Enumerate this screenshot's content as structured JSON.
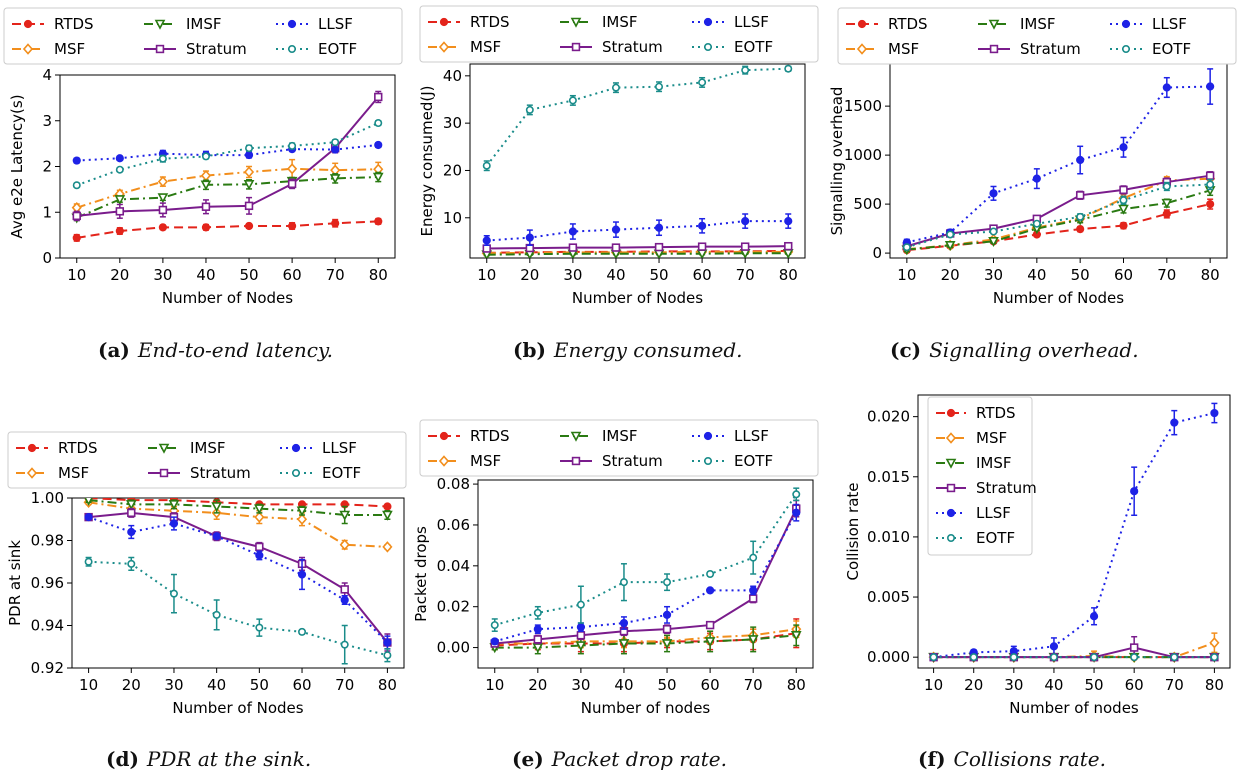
{
  "x_nodes": [
    10,
    20,
    30,
    40,
    50,
    60,
    70,
    80
  ],
  "series_styles": {
    "RTDS": {
      "color": "#e3241b",
      "dash": "9,5",
      "marker": "circle"
    },
    "MSF": {
      "color": "#f28e1c",
      "dash": "9,4,2,4",
      "marker": "diamond"
    },
    "IMSF": {
      "color": "#2a7a12",
      "dash": "9,4,2,4",
      "marker": "triangle"
    },
    "Stratum": {
      "color": "#7a1c8c",
      "dash": "",
      "marker": "square"
    },
    "LLSF": {
      "color": "#1e22e6",
      "dash": "2,4",
      "marker": "circle"
    },
    "EOTF": {
      "color": "#1a8c8a",
      "dash": "2,4",
      "marker": "circle-open"
    }
  },
  "captions": [
    {
      "label": "(a)",
      "text": "End-to-end latency."
    },
    {
      "label": "(b)",
      "text": "Energy consumed."
    },
    {
      "label": "(c)",
      "text": "Signalling overhead."
    },
    {
      "label": "(d)",
      "text": "PDR at the sink."
    },
    {
      "label": "(e)",
      "text": "Packet drop rate."
    },
    {
      "label": "(f)",
      "text": "Collisions rate."
    }
  ],
  "chart_data": [
    {
      "type": "line",
      "title": "",
      "xlabel": "Number of Nodes",
      "ylabel": "Avg e2e Latency(s)",
      "ylim": [
        0,
        4
      ],
      "yticks": [
        "0",
        "1",
        "2",
        "3",
        "4"
      ],
      "ytick_values": [
        0,
        1,
        2,
        3,
        4
      ],
      "xticks": [
        "10",
        "20",
        "30",
        "40",
        "50",
        "60",
        "70",
        "80"
      ],
      "grid": false,
      "legend": "top-outside-3col",
      "legend_order": [
        "RTDS",
        "MSF",
        "IMSF",
        "Stratum",
        "LLSF",
        "EOTF"
      ],
      "series": [
        {
          "name": "RTDS",
          "values": [
            0.44,
            0.59,
            0.67,
            0.67,
            0.7,
            0.7,
            0.76,
            0.8
          ],
          "err": [
            0.07,
            0.07,
            0.05,
            0.06,
            0.05,
            0.07,
            0.08,
            0.06
          ]
        },
        {
          "name": "MSF",
          "values": [
            1.1,
            1.4,
            1.67,
            1.8,
            1.88,
            1.95,
            1.92,
            1.94
          ],
          "err": [
            0.08,
            0.08,
            0.1,
            0.1,
            0.12,
            0.2,
            0.15,
            0.15
          ]
        },
        {
          "name": "IMSF",
          "values": [
            0.88,
            1.28,
            1.32,
            1.6,
            1.61,
            1.68,
            1.74,
            1.77
          ],
          "err": [
            0.06,
            0.06,
            0.06,
            0.1,
            0.1,
            0.08,
            0.1,
            0.1
          ]
        },
        {
          "name": "Stratum",
          "values": [
            0.92,
            1.02,
            1.05,
            1.12,
            1.14,
            1.62,
            2.4,
            3.52
          ],
          "err": [
            0.1,
            0.15,
            0.15,
            0.15,
            0.18,
            0.1,
            0.1,
            0.12
          ]
        },
        {
          "name": "LLSF",
          "values": [
            2.13,
            2.18,
            2.28,
            2.25,
            2.25,
            2.38,
            2.37,
            2.47
          ],
          "err": [
            0.05,
            0.04,
            0.07,
            0.08,
            0.06,
            0.05,
            0.05,
            0.05
          ]
        },
        {
          "name": "EOTF",
          "values": [
            1.59,
            1.93,
            2.17,
            2.22,
            2.4,
            2.45,
            2.53,
            2.95
          ],
          "err": [
            0.04,
            0.04,
            0.07,
            0.05,
            0.06,
            0.06,
            0.05,
            0.05
          ]
        }
      ]
    },
    {
      "type": "line",
      "title": "",
      "xlabel": "Number of Nodes",
      "ylabel": "Energy consumed(J)",
      "ylim": [
        1.5,
        42.5
      ],
      "yticks": [
        "10",
        "20",
        "30",
        "40"
      ],
      "ytick_values": [
        10,
        20,
        30,
        40
      ],
      "xticks": [
        "10",
        "20",
        "30",
        "40",
        "50",
        "60",
        "70",
        "80"
      ],
      "grid": false,
      "legend": "top-outside-3col",
      "legend_order": [
        "RTDS",
        "MSF",
        "IMSF",
        "Stratum",
        "LLSF",
        "EOTF"
      ],
      "series": [
        {
          "name": "RTDS",
          "values": [
            2.6,
            2.7,
            2.8,
            2.8,
            2.9,
            2.9,
            2.9,
            3.0
          ],
          "err": [
            0.2,
            0.2,
            0.2,
            0.2,
            0.2,
            0.2,
            0.2,
            0.2
          ]
        },
        {
          "name": "MSF",
          "values": [
            2.5,
            2.6,
            2.7,
            2.7,
            2.7,
            2.8,
            2.8,
            2.8
          ],
          "err": [
            0.2,
            0.2,
            0.2,
            0.2,
            0.2,
            0.2,
            0.2,
            0.2
          ]
        },
        {
          "name": "IMSF",
          "values": [
            2.2,
            2.3,
            2.4,
            2.4,
            2.4,
            2.4,
            2.5,
            2.5
          ],
          "err": [
            0.2,
            0.2,
            0.2,
            0.2,
            0.2,
            0.2,
            0.2,
            0.2
          ]
        },
        {
          "name": "Stratum",
          "values": [
            3.5,
            3.6,
            3.7,
            3.7,
            3.8,
            3.9,
            3.9,
            4.0
          ],
          "err": [
            0.2,
            0.2,
            0.2,
            0.2,
            0.2,
            0.2,
            0.2,
            0.2
          ]
        },
        {
          "name": "LLSF",
          "values": [
            5.2,
            5.8,
            7.1,
            7.5,
            7.9,
            8.3,
            9.3,
            9.3
          ],
          "err": [
            1.0,
            1.6,
            1.6,
            1.6,
            1.6,
            1.5,
            1.5,
            1.5
          ]
        },
        {
          "name": "EOTF",
          "values": [
            21.0,
            32.8,
            34.8,
            37.5,
            37.7,
            38.6,
            41.2,
            41.5
          ],
          "err": [
            1.0,
            1.0,
            1.0,
            1.0,
            1.0,
            1.0,
            0.8,
            0.5
          ]
        }
      ]
    },
    {
      "type": "line",
      "title": "",
      "xlabel": "Number of Nodes",
      "ylabel": "Signalling overhead",
      "ylim": [
        -50,
        1930
      ],
      "yticks": [
        "0",
        "500",
        "1000",
        "1500"
      ],
      "ytick_values": [
        0,
        500,
        1000,
        1500
      ],
      "xticks": [
        "10",
        "20",
        "30",
        "40",
        "50",
        "60",
        "70",
        "80"
      ],
      "grid": false,
      "legend": "top-outside-3col",
      "legend_order": [
        "RTDS",
        "MSF",
        "IMSF",
        "Stratum",
        "LLSF",
        "EOTF"
      ],
      "series": [
        {
          "name": "RTDS",
          "values": [
            30,
            75,
            120,
            190,
            245,
            280,
            400,
            500
          ],
          "err": [
            20,
            15,
            20,
            20,
            25,
            30,
            40,
            50
          ]
        },
        {
          "name": "MSF",
          "values": [
            40,
            80,
            140,
            260,
            350,
            560,
            740,
            760
          ],
          "err": [
            20,
            20,
            20,
            20,
            30,
            40,
            40,
            50
          ]
        },
        {
          "name": "IMSF",
          "values": [
            35,
            80,
            120,
            250,
            340,
            450,
            510,
            640
          ],
          "err": [
            20,
            20,
            20,
            20,
            30,
            40,
            40,
            50
          ]
        },
        {
          "name": "Stratum",
          "values": [
            70,
            200,
            250,
            350,
            590,
            645,
            725,
            790
          ],
          "err": [
            20,
            25,
            25,
            25,
            40,
            40,
            40,
            40
          ]
        },
        {
          "name": "LLSF",
          "values": [
            110,
            210,
            610,
            760,
            950,
            1080,
            1690,
            1700
          ],
          "err": [
            30,
            30,
            70,
            100,
            140,
            100,
            100,
            180
          ]
        },
        {
          "name": "EOTF",
          "values": [
            60,
            190,
            220,
            300,
            370,
            540,
            680,
            700
          ],
          "err": [
            20,
            20,
            20,
            20,
            30,
            40,
            40,
            50
          ]
        }
      ]
    },
    {
      "type": "line",
      "title": "",
      "xlabel": "Number of Nodes",
      "ylabel": "PDR at sink",
      "ylim": [
        0.92,
        1.0
      ],
      "yticks": [
        "0.92",
        "0.94",
        "0.96",
        "0.98",
        "1.00"
      ],
      "ytick_values": [
        0.92,
        0.94,
        0.96,
        0.98,
        1.0
      ],
      "xticks": [
        "10",
        "20",
        "30",
        "40",
        "50",
        "60",
        "70",
        "80"
      ],
      "grid": false,
      "legend": "top-outside-3col",
      "legend_order": [
        "RTDS",
        "MSF",
        "IMSF",
        "Stratum",
        "LLSF",
        "EOTF"
      ],
      "series": [
        {
          "name": "RTDS",
          "values": [
            1.0,
            0.999,
            0.999,
            0.998,
            0.997,
            0.997,
            0.997,
            0.996
          ],
          "err": [
            0.001,
            0.001,
            0.001,
            0.001,
            0.001,
            0.001,
            0.001,
            0.001
          ]
        },
        {
          "name": "MSF",
          "values": [
            0.998,
            0.995,
            0.994,
            0.993,
            0.991,
            0.99,
            0.978,
            0.977
          ],
          "err": [
            0.001,
            0.002,
            0.002,
            0.003,
            0.003,
            0.003,
            0.002,
            0.001
          ]
        },
        {
          "name": "IMSF",
          "values": [
            0.999,
            0.997,
            0.997,
            0.996,
            0.995,
            0.994,
            0.992,
            0.992
          ],
          "err": [
            0.001,
            0.002,
            0.002,
            0.003,
            0.002,
            0.002,
            0.004,
            0.002
          ]
        },
        {
          "name": "Stratum",
          "values": [
            0.991,
            0.993,
            0.991,
            0.982,
            0.977,
            0.969,
            0.957,
            0.932
          ],
          "err": [
            0.001,
            0.002,
            0.002,
            0.002,
            0.002,
            0.003,
            0.003,
            0.004
          ]
        },
        {
          "name": "LLSF",
          "values": [
            0.991,
            0.984,
            0.988,
            0.982,
            0.973,
            0.964,
            0.952,
            0.932
          ],
          "err": [
            0.001,
            0.003,
            0.003,
            0.001,
            0.002,
            0.007,
            0.002,
            0.003
          ]
        },
        {
          "name": "EOTF",
          "values": [
            0.97,
            0.969,
            0.955,
            0.945,
            0.939,
            0.937,
            0.931,
            0.926
          ],
          "err": [
            0.002,
            0.003,
            0.009,
            0.007,
            0.004,
            0.001,
            0.009,
            0.003
          ]
        }
      ]
    },
    {
      "type": "line",
      "title": "",
      "xlabel": "Number of nodes",
      "ylabel": "Packet drops",
      "ylim": [
        -0.01,
        0.082
      ],
      "yticks": [
        "0.00",
        "0.02",
        "0.04",
        "0.06",
        "0.08"
      ],
      "ytick_values": [
        0.0,
        0.02,
        0.04,
        0.06,
        0.08
      ],
      "xticks": [
        "10",
        "20",
        "30",
        "40",
        "50",
        "60",
        "70",
        "80"
      ],
      "grid": false,
      "legend": "top-outside-3col",
      "legend_order": [
        "RTDS",
        "MSF",
        "IMSF",
        "Stratum",
        "LLSF",
        "EOTF"
      ],
      "series": [
        {
          "name": "RTDS",
          "values": [
            0.001,
            0.002,
            0.002,
            0.002,
            0.003,
            0.003,
            0.004,
            0.007
          ],
          "err": [
            0.002,
            0.003,
            0.004,
            0.004,
            0.003,
            0.004,
            0.005,
            0.007
          ]
        },
        {
          "name": "MSF",
          "values": [
            0.002,
            0.002,
            0.003,
            0.003,
            0.003,
            0.005,
            0.006,
            0.009
          ],
          "err": [
            0.001,
            0.002,
            0.003,
            0.003,
            0.002,
            0.003,
            0.003,
            0.004
          ]
        },
        {
          "name": "IMSF",
          "values": [
            0.0,
            0.0,
            0.001,
            0.002,
            0.002,
            0.003,
            0.004,
            0.006
          ],
          "err": [
            0.001,
            0.003,
            0.004,
            0.005,
            0.004,
            0.005,
            0.006,
            0.005
          ]
        },
        {
          "name": "Stratum",
          "values": [
            0.002,
            0.004,
            0.006,
            0.008,
            0.009,
            0.011,
            0.024,
            0.068
          ],
          "err": [
            0.001,
            0.002,
            0.002,
            0.002,
            0.002,
            0.001,
            0.002,
            0.004
          ]
        },
        {
          "name": "LLSF",
          "values": [
            0.003,
            0.009,
            0.01,
            0.012,
            0.016,
            0.028,
            0.028,
            0.066
          ],
          "err": [
            0.001,
            0.002,
            0.002,
            0.003,
            0.004,
            0.001,
            0.002,
            0.004
          ]
        },
        {
          "name": "EOTF",
          "values": [
            0.011,
            0.017,
            0.021,
            0.032,
            0.032,
            0.036,
            0.044,
            0.075
          ],
          "err": [
            0.003,
            0.003,
            0.009,
            0.009,
            0.004,
            0.001,
            0.008,
            0.003
          ]
        }
      ]
    },
    {
      "type": "line",
      "title": "",
      "xlabel": "Number of nodes",
      "ylabel": "Collision rate",
      "ylim": [
        -0.0009,
        0.0218
      ],
      "yticks": [
        "0.000",
        "0.005",
        "0.010",
        "0.015",
        "0.020"
      ],
      "ytick_values": [
        0.0,
        0.005,
        0.01,
        0.015,
        0.02
      ],
      "xticks": [
        "10",
        "20",
        "30",
        "40",
        "50",
        "60",
        "70",
        "80"
      ],
      "grid": false,
      "legend": "top-left-inside-1col",
      "legend_order": [
        "RTDS",
        "MSF",
        "IMSF",
        "Stratum",
        "LLSF",
        "EOTF"
      ],
      "series": [
        {
          "name": "RTDS",
          "values": [
            0,
            0,
            0,
            0,
            0,
            0,
            0,
            0
          ],
          "err": [
            0,
            0,
            0,
            0,
            0,
            0,
            0,
            0
          ]
        },
        {
          "name": "MSF",
          "values": [
            0,
            0,
            0,
            0,
            0.0001,
            0,
            0,
            0.0012
          ],
          "err": [
            0,
            0,
            0,
            0,
            0.0004,
            0,
            0,
            0.0008
          ]
        },
        {
          "name": "IMSF",
          "values": [
            0,
            0,
            0,
            0,
            0,
            0,
            0,
            0
          ],
          "err": [
            0,
            0,
            0,
            0,
            0,
            0,
            0,
            0
          ]
        },
        {
          "name": "Stratum",
          "values": [
            0,
            0,
            0,
            0,
            0,
            0.0008,
            0,
            0
          ],
          "err": [
            0,
            0,
            0,
            0,
            0,
            0.0009,
            0,
            0
          ]
        },
        {
          "name": "LLSF",
          "values": [
            0,
            0.0004,
            0.0005,
            0.0009,
            0.0034,
            0.0138,
            0.0195,
            0.0203
          ],
          "err": [
            0,
            0.0002,
            0.0004,
            0.0007,
            0.0007,
            0.002,
            0.001,
            0.0008
          ]
        },
        {
          "name": "EOTF",
          "values": [
            0,
            0,
            0,
            0,
            0,
            0,
            0,
            0
          ],
          "err": [
            0,
            0,
            0,
            0,
            0,
            0,
            0,
            0
          ]
        }
      ]
    }
  ]
}
